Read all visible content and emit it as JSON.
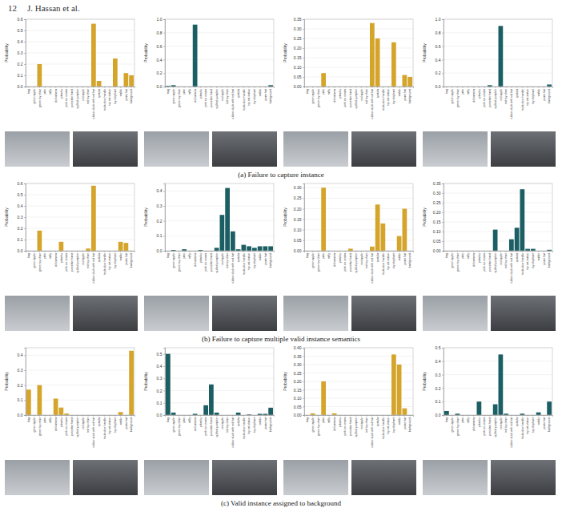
{
  "page": {
    "page_number": "12",
    "running_head": "J. Hassan et al."
  },
  "captions": [
    "(a) Failure to capture instance",
    "(b) Failure to capture multiple valid instance semantics",
    "(c) Valid instance assigned to background"
  ],
  "chart_data": [
    {
      "type": "bar",
      "y_label": "Probability",
      "categories": [
        "bag",
        "green apple",
        "green toy chair",
        "jake",
        "miffy",
        "old camera",
        "pikachu",
        "pink ice cream",
        "porcelain hand",
        "quilted pumpkin",
        "red apple",
        "red toy chair",
        "rubber duck with red hat",
        "spatula",
        "tesla door handle",
        "toy cat statue",
        "toy elephant",
        "waldo",
        "pirate hat",
        "background"
      ],
      "values": [
        0,
        0,
        0.2,
        0,
        0,
        0,
        0,
        0,
        0,
        0,
        0,
        0,
        0.56,
        0.05,
        0,
        0,
        0.25,
        0,
        0.12,
        0.1
      ],
      "color": "#d4a52a",
      "ylim": [
        0,
        0.6
      ],
      "yticks": [
        {
          "value": 0,
          "label": "0.0"
        },
        0.1,
        0.2,
        0.3,
        0.4,
        0.5,
        0.6
      ],
      "grid": true
    },
    {
      "type": "bar",
      "y_label": "Probability",
      "categories": [
        "bag",
        "green apple",
        "green toy chair",
        "jake",
        "miffy",
        "old camera",
        "pikachu",
        "pink ice cream",
        "porcelain hand",
        "quilted pumpkin",
        "red apple",
        "red toy chair",
        "rubber duck with red hat",
        "spatula",
        "tesla door handle",
        "toy cat statue",
        "toy elephant",
        "waldo",
        "pirate hat",
        "background"
      ],
      "values": [
        0.01,
        0.02,
        0,
        0,
        0,
        0.92,
        0,
        0,
        0,
        0,
        0,
        0,
        0,
        0,
        0,
        0,
        0,
        0,
        0,
        0.02
      ],
      "color": "#1b5e63",
      "ylim": [
        0,
        1
      ],
      "yticks": [
        {
          "value": 0,
          "label": "0.0"
        },
        0.2,
        0.4,
        0.6,
        0.8,
        {
          "value": 1,
          "label": "1.0"
        }
      ],
      "grid": true
    },
    {
      "type": "bar",
      "y_label": "Probability",
      "categories": [
        "bag",
        "green apple",
        "green toy chair",
        "jake",
        "miffy",
        "old camera",
        "pikachu",
        "pink ice cream",
        "porcelain hand",
        "quilted pumpkin",
        "red apple",
        "red toy chair",
        "rubber duck with red hat",
        "spatula",
        "tesla door handle",
        "toy cat statue",
        "toy elephant",
        "waldo",
        "pirate hat",
        "background"
      ],
      "values": [
        0,
        0,
        0,
        0.07,
        0,
        0,
        0,
        0,
        0,
        0,
        0,
        0,
        0.33,
        0.25,
        0,
        0,
        0.23,
        0,
        0.06,
        0.05
      ],
      "color": "#d4a52a",
      "ylim": [
        0,
        0.35
      ],
      "yticks": [
        {
          "value": 0,
          "label": "0.00"
        },
        0.05,
        {
          "value": 0.1,
          "label": "0.10"
        },
        0.15,
        {
          "value": 0.2,
          "label": "0.20"
        },
        0.25,
        {
          "value": 0.3,
          "label": "0.30"
        },
        0.35
      ],
      "grid": true
    },
    {
      "type": "bar",
      "y_label": "Probability",
      "categories": [
        "bag",
        "green apple",
        "green toy chair",
        "jake",
        "miffy",
        "old camera",
        "pikachu",
        "pink ice cream",
        "porcelain hand",
        "quilted pumpkin",
        "red apple",
        "red toy chair",
        "rubber duck with red hat",
        "spatula",
        "tesla door handle",
        "toy cat statue",
        "toy elephant",
        "waldo",
        "pirate hat",
        "background"
      ],
      "values": [
        0,
        0,
        0,
        0,
        0,
        0,
        0,
        0,
        0.02,
        0,
        0.9,
        0,
        0,
        0,
        0,
        0,
        0,
        0,
        0,
        0.03
      ],
      "color": "#1b5e63",
      "ylim": [
        0,
        1
      ],
      "yticks": [
        {
          "value": 0,
          "label": "0.0"
        },
        0.2,
        0.4,
        0.6,
        0.8,
        {
          "value": 1,
          "label": "1.0"
        }
      ],
      "grid": true
    },
    {
      "type": "bar",
      "y_label": "Probability",
      "categories": [
        "bag",
        "green apple",
        "green toy chair",
        "jake",
        "miffy",
        "old camera",
        "pikachu",
        "pink ice cream",
        "porcelain hand",
        "quilted pumpkin",
        "red apple",
        "red toy chair",
        "rubber duck with red hat",
        "spatula",
        "tesla door handle",
        "toy cat statue",
        "toy elephant",
        "waldo",
        "pirate hat",
        "background"
      ],
      "values": [
        0,
        0,
        0.18,
        0,
        0,
        0,
        0.08,
        0,
        0,
        0,
        0,
        0.02,
        0.58,
        0,
        0,
        0,
        0,
        0.08,
        0.07,
        0
      ],
      "color": "#d4a52a",
      "ylim": [
        0,
        0.6
      ],
      "yticks": [
        {
          "value": 0,
          "label": "0.0"
        },
        0.1,
        0.2,
        0.3,
        0.4,
        0.5,
        0.6
      ],
      "grid": true
    },
    {
      "type": "bar",
      "y_label": "Probability",
      "categories": [
        "bag",
        "green apple",
        "green toy chair",
        "jake",
        "miffy",
        "old camera",
        "pikachu",
        "pink ice cream",
        "porcelain hand",
        "quilted pumpkin",
        "red apple",
        "red toy chair",
        "rubber duck with red hat",
        "spatula",
        "tesla door handle",
        "toy cat statue",
        "toy elephant",
        "waldo",
        "pirate hat",
        "background"
      ],
      "values": [
        0,
        0.005,
        0,
        0.01,
        0,
        0,
        0.005,
        0,
        0,
        0.02,
        0.24,
        0.42,
        0.13,
        0.01,
        0.04,
        0.03,
        0.02,
        0.03,
        0.03,
        0.03
      ],
      "color": "#1b5e63",
      "ylim": [
        0,
        0.45
      ],
      "yticks": [
        {
          "value": 0,
          "label": "0.0"
        },
        0.1,
        0.2,
        0.3,
        0.4
      ],
      "grid": true
    },
    {
      "type": "bar",
      "y_label": "Probability",
      "categories": [
        "bag",
        "green apple",
        "green toy chair",
        "jake",
        "miffy",
        "old camera",
        "pikachu",
        "pink ice cream",
        "porcelain hand",
        "quilted pumpkin",
        "red apple",
        "red toy chair",
        "rubber duck with red hat",
        "spatula",
        "tesla door handle",
        "toy cat statue",
        "toy elephant",
        "waldo",
        "pirate hat",
        "background"
      ],
      "values": [
        0,
        0,
        0,
        0.3,
        0,
        0,
        0,
        0,
        0.01,
        0,
        0,
        0,
        0.02,
        0.22,
        0.13,
        0,
        0,
        0.07,
        0.2,
        0
      ],
      "color": "#d4a52a",
      "ylim": [
        0,
        0.32
      ],
      "yticks": [
        {
          "value": 0,
          "label": "0.00"
        },
        0.05,
        {
          "value": 0.1,
          "label": "0.10"
        },
        0.15,
        {
          "value": 0.2,
          "label": "0.20"
        },
        0.25,
        {
          "value": 0.3,
          "label": "0.30"
        }
      ],
      "grid": true
    },
    {
      "type": "bar",
      "y_label": "Probability",
      "categories": [
        "bag",
        "green apple",
        "green toy chair",
        "jake",
        "miffy",
        "old camera",
        "pikachu",
        "pink ice cream",
        "porcelain hand",
        "quilted pumpkin",
        "red apple",
        "red toy chair",
        "rubber duck with red hat",
        "spatula",
        "tesla door handle",
        "toy cat statue",
        "toy elephant",
        "waldo",
        "pirate hat",
        "background"
      ],
      "values": [
        0,
        0,
        0,
        0,
        0,
        0,
        0,
        0,
        0,
        0.11,
        0,
        0,
        0.06,
        0.12,
        0.32,
        0.01,
        0.01,
        0,
        0,
        0.005
      ],
      "color": "#1b5e63",
      "ylim": [
        0,
        0.35
      ],
      "yticks": [
        {
          "value": 0,
          "label": "0.00"
        },
        0.05,
        {
          "value": 0.1,
          "label": "0.10"
        },
        0.15,
        {
          "value": 0.2,
          "label": "0.20"
        },
        0.25,
        {
          "value": 0.3,
          "label": "0.30"
        },
        0.35
      ],
      "grid": true
    },
    {
      "type": "bar",
      "y_label": "Probability",
      "categories": [
        "bag",
        "green apple",
        "green toy chair",
        "jake",
        "miffy",
        "old camera",
        "pikachu",
        "pink ice cream",
        "porcelain hand",
        "quilted pumpkin",
        "red apple",
        "red toy chair",
        "rubber duck with red hat",
        "spatula",
        "tesla door handle",
        "toy cat statue",
        "toy elephant",
        "waldo",
        "pirate hat",
        "background"
      ],
      "values": [
        0.17,
        0,
        0.2,
        0,
        0,
        0.11,
        0.05,
        0.01,
        0,
        0,
        0,
        0,
        0,
        0,
        0,
        0,
        0,
        0.02,
        0,
        0.43
      ],
      "color": "#d4a52a",
      "ylim": [
        0,
        0.45
      ],
      "yticks": [
        {
          "value": 0,
          "label": "0.0"
        },
        0.1,
        0.2,
        0.3,
        0.4
      ],
      "grid": true
    },
    {
      "type": "bar",
      "y_label": "Probability",
      "categories": [
        "bag",
        "green apple",
        "green toy chair",
        "jake",
        "miffy",
        "old camera",
        "pikachu",
        "pink ice cream",
        "porcelain hand",
        "quilted pumpkin",
        "red apple",
        "red toy chair",
        "rubber duck with red hat",
        "spatula",
        "tesla door handle",
        "toy cat statue",
        "toy elephant",
        "waldo",
        "pirate hat",
        "background"
      ],
      "values": [
        0.5,
        0.02,
        0,
        0,
        0,
        0.01,
        0,
        0.08,
        0.25,
        0.02,
        0,
        0,
        0,
        0.02,
        0,
        0.005,
        0,
        0.01,
        0.01,
        0.06
      ],
      "color": "#1b5e63",
      "ylim": [
        0,
        0.55
      ],
      "yticks": [
        {
          "value": 0,
          "label": "0.0"
        },
        0.1,
        0.2,
        0.3,
        0.4,
        0.5
      ],
      "grid": true
    },
    {
      "type": "bar",
      "y_label": "Probability",
      "categories": [
        "bag",
        "green apple",
        "green toy chair",
        "jake",
        "miffy",
        "old camera",
        "pikachu",
        "pink ice cream",
        "porcelain hand",
        "quilted pumpkin",
        "red apple",
        "red toy chair",
        "rubber duck with red hat",
        "spatula",
        "tesla door handle",
        "toy cat statue",
        "toy elephant",
        "waldo",
        "pirate hat",
        "background"
      ],
      "values": [
        0,
        0.01,
        0,
        0.2,
        0,
        0.01,
        0,
        0,
        0,
        0,
        0,
        0,
        0,
        0,
        0,
        0,
        0.36,
        0.3,
        0.04,
        0
      ],
      "color": "#d4a52a",
      "ylim": [
        0,
        0.4
      ],
      "yticks": [
        {
          "value": 0,
          "label": "0.00"
        },
        0.05,
        {
          "value": 0.1,
          "label": "0.10"
        },
        0.15,
        {
          "value": 0.2,
          "label": "0.20"
        },
        0.25,
        {
          "value": 0.3,
          "label": "0.30"
        },
        0.35,
        {
          "value": 0.4,
          "label": "0.40"
        }
      ],
      "grid": true
    },
    {
      "type": "bar",
      "y_label": "Probability",
      "categories": [
        "bag",
        "green apple",
        "green toy chair",
        "jake",
        "miffy",
        "old camera",
        "pikachu",
        "pink ice cream",
        "porcelain hand",
        "quilted pumpkin",
        "red apple",
        "red toy chair",
        "rubber duck with red hat",
        "spatula",
        "tesla door handle",
        "toy cat statue",
        "toy elephant",
        "waldo",
        "pirate hat",
        "background"
      ],
      "values": [
        0.03,
        0,
        0.01,
        0,
        0,
        0,
        0.1,
        0,
        0,
        0.08,
        0.45,
        0.01,
        0,
        0,
        0.01,
        0,
        0,
        0.02,
        0,
        0.1
      ],
      "color": "#1b5e63",
      "ylim": [
        0,
        0.5
      ],
      "yticks": [
        {
          "value": 0,
          "label": "0.0"
        },
        0.1,
        0.2,
        0.3,
        0.4,
        0.5
      ],
      "grid": true
    }
  ]
}
